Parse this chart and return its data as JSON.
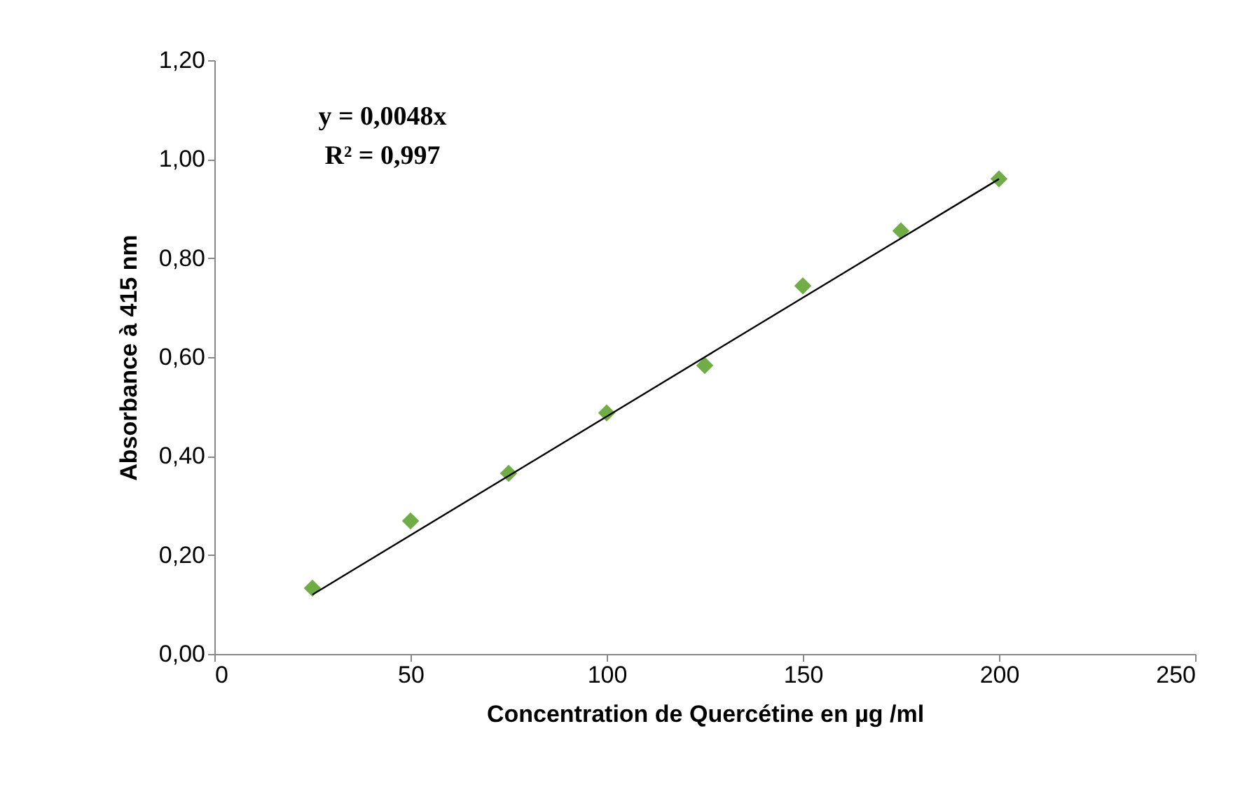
{
  "chart_data": {
    "type": "scatter",
    "xlabel": "Concentration de Quercétine en µg /ml",
    "ylabel": "Absorbance à 415 nm",
    "x": [
      25,
      50,
      75,
      100,
      125,
      150,
      175,
      200
    ],
    "series": [
      {
        "color": "#70ad47",
        "marker": "diamond",
        "values": [
          0.133,
          0.269,
          0.365,
          0.487,
          0.583,
          0.744,
          0.855,
          0.96
        ]
      },
      {
        "type": "line",
        "color": "#000000",
        "line_style": "solid",
        "x": [
          25,
          200
        ],
        "values": [
          0.12,
          0.96
        ]
      }
    ],
    "xlim": [
      0,
      250
    ],
    "xticks": [
      0,
      50,
      100,
      150,
      200,
      250
    ],
    "ylim": [
      0,
      1.2
    ],
    "yticks": [
      {
        "value": 0,
        "label": "0,00"
      },
      {
        "value": 0.2,
        "label": "0,20"
      },
      {
        "value": 0.4,
        "label": "0,40"
      },
      {
        "value": 0.6,
        "label": "0,60"
      },
      {
        "value": 0.8,
        "label": "0,80"
      },
      {
        "value": 1.0,
        "label": "1,00"
      },
      {
        "value": 1.2,
        "label": "1,20"
      }
    ],
    "annotations": [
      "y = 0,0048x",
      "R² = 0,997"
    ],
    "grid": false
  }
}
